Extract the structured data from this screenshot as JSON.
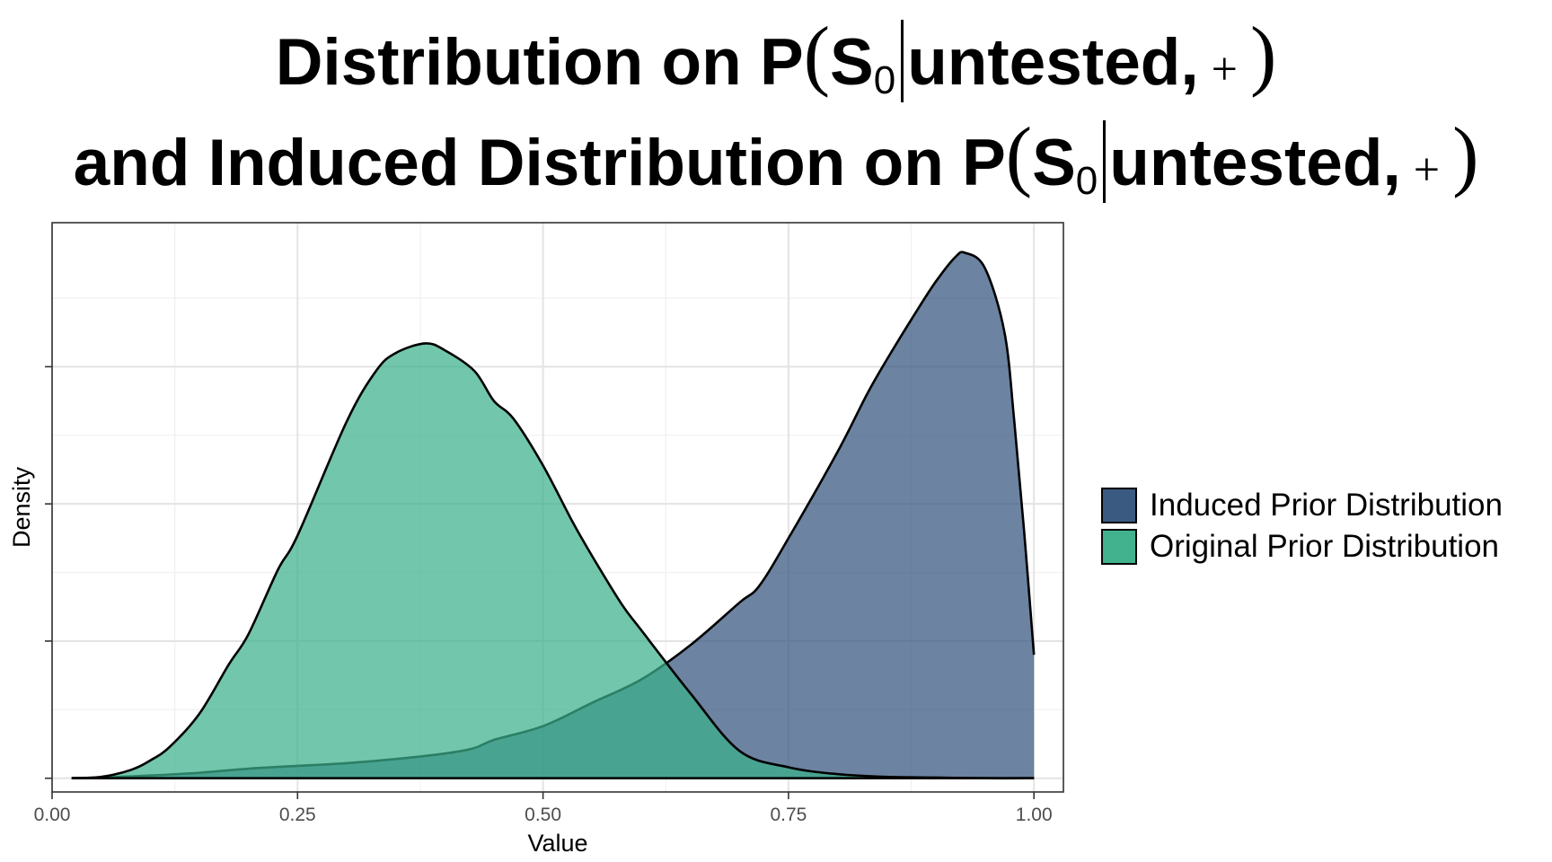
{
  "title": {
    "line1_prefix": "Distribution on P",
    "line2_prefix": "and Induced Distribution on P",
    "paren_open": "(",
    "paren_close": ")",
    "variable": "S",
    "subscript": "0",
    "condition": "untested,",
    "sign": "+"
  },
  "chart_data": {
    "type": "area",
    "xlabel": "Value",
    "ylabel": "Density",
    "xlim": [
      0.0,
      1.03
    ],
    "ylim": [
      -0.1,
      4.05
    ],
    "x_ticks": [
      0.0,
      0.25,
      0.5,
      0.75,
      1.0
    ],
    "x_tick_labels": [
      "0.00",
      "0.25",
      "0.50",
      "0.75",
      "1.00"
    ],
    "y_ticks": [
      0.0,
      1.0,
      2.0,
      3.0
    ],
    "y_tick_labels": [
      "",
      "",
      "",
      ""
    ],
    "grid": true,
    "legend_position": "right",
    "series": [
      {
        "name": "Induced Prior Distribution",
        "color": "#3b5a82",
        "opacity": 0.75,
        "x": [
          0.02,
          0.05,
          0.1,
          0.15,
          0.2,
          0.25,
          0.3,
          0.35,
          0.4,
          0.43,
          0.45,
          0.5,
          0.55,
          0.6,
          0.65,
          0.7,
          0.72,
          0.75,
          0.8,
          0.83,
          0.85,
          0.88,
          0.9,
          0.92,
          0.93,
          0.95,
          0.97,
          0.98,
          0.99,
          1.0
        ],
        "values": [
          0.0,
          0.005,
          0.02,
          0.04,
          0.07,
          0.09,
          0.11,
          0.14,
          0.18,
          0.22,
          0.28,
          0.38,
          0.55,
          0.72,
          0.97,
          1.28,
          1.4,
          1.75,
          2.38,
          2.8,
          3.05,
          3.4,
          3.62,
          3.8,
          3.83,
          3.72,
          3.25,
          2.6,
          1.8,
          0.9
        ]
      },
      {
        "name": "Original Prior Distribution",
        "color": "#3cb08b",
        "opacity": 0.72,
        "x": [
          0.02,
          0.05,
          0.08,
          0.1,
          0.12,
          0.15,
          0.18,
          0.2,
          0.23,
          0.25,
          0.3,
          0.33,
          0.35,
          0.38,
          0.4,
          0.43,
          0.45,
          0.47,
          0.5,
          0.53,
          0.55,
          0.58,
          0.6,
          0.65,
          0.7,
          0.75,
          0.8,
          0.85,
          0.9,
          0.95,
          1.0
        ],
        "values": [
          0.0,
          0.01,
          0.06,
          0.13,
          0.23,
          0.47,
          0.83,
          1.05,
          1.52,
          1.77,
          2.6,
          2.97,
          3.1,
          3.17,
          3.12,
          2.97,
          2.75,
          2.62,
          2.28,
          1.87,
          1.62,
          1.27,
          1.08,
          0.62,
          0.2,
          0.08,
          0.03,
          0.01,
          0.005,
          0.0,
          0.0
        ]
      }
    ]
  }
}
